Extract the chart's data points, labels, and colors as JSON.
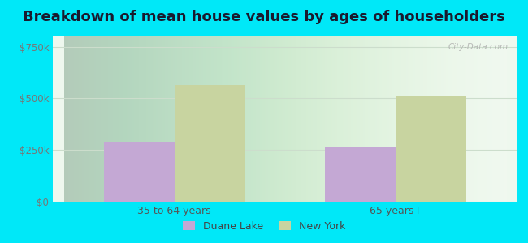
{
  "title": "Breakdown of mean house values by ages of householders",
  "categories": [
    "35 to 64 years",
    "65 years+"
  ],
  "series": {
    "Duane Lake": [
      290000,
      265000
    ],
    "New York": [
      565000,
      510000
    ]
  },
  "duane_lake_color": "#c4a8d4",
  "new_york_color": "#c8d4a0",
  "ylim": [
    0,
    800000
  ],
  "yticks": [
    0,
    250000,
    500000,
    750000
  ],
  "ytick_labels": [
    "$0",
    "$250k",
    "$500k",
    "$750k"
  ],
  "background_outer": "#00e8f8",
  "title_fontsize": 13,
  "bar_width": 0.32,
  "watermark": "City-Data.com",
  "legend_labels": [
    "Duane Lake",
    "New York"
  ]
}
